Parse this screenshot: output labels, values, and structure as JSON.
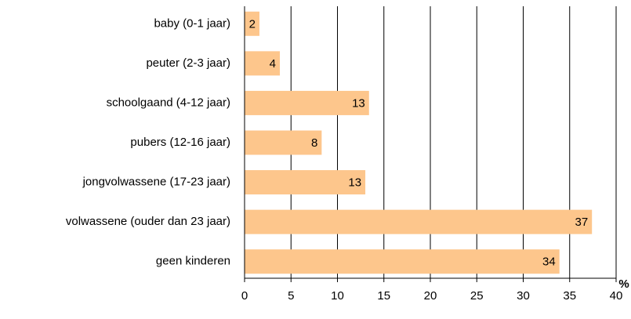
{
  "chart_data": {
    "type": "hbar",
    "categories": [
      "baby (0-1 jaar)",
      "peuter (2-3 jaar)",
      "schoolgaand (4-12 jaar)",
      "pubers (12-16 jaar)",
      "jongvolwassene (17-23 jaar)",
      "volwassene (ouder dan 23 jaar)",
      "geen kinderen"
    ],
    "values": [
      1.6,
      3.8,
      13.4,
      8.3,
      13.0,
      37.4,
      33.9
    ],
    "value_labels": [
      "2",
      "4",
      "13",
      "8",
      "13",
      "37",
      "34"
    ],
    "color": "#fdc68c",
    "xlabel": "%",
    "xlim": [
      0,
      40
    ],
    "xticks": [
      0,
      5,
      10,
      15,
      20,
      25,
      30,
      35,
      40
    ],
    "grid": true
  }
}
